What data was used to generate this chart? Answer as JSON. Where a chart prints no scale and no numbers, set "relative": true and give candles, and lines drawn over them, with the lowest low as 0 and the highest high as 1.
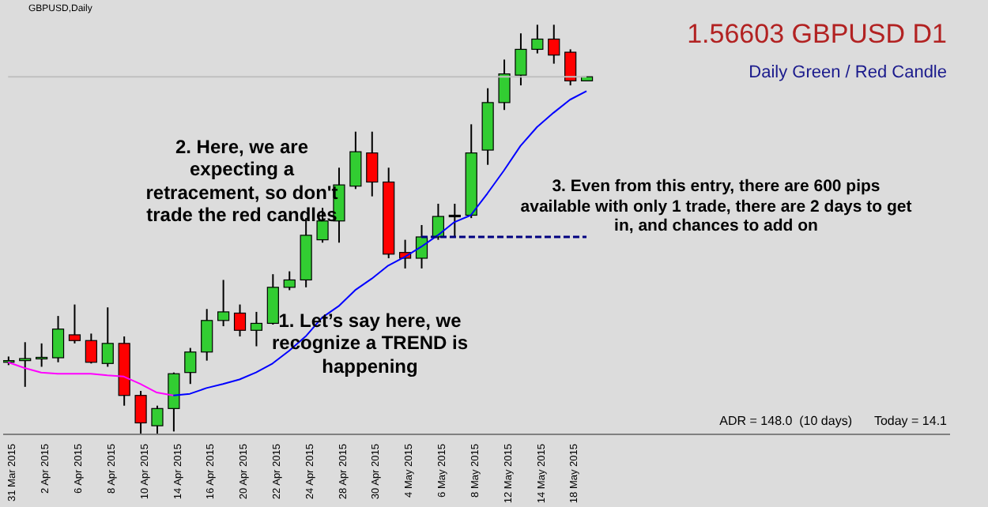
{
  "chart_data": {
    "type": "candlestick",
    "title": "1.56603 GBPUSD D1",
    "subtitle": "Daily Green / Red Candle",
    "relative": true,
    "categories": [
      "31 Mar 2015",
      null,
      "2 Apr 2015",
      null,
      "6 Apr 2015",
      null,
      "8 Apr 2015",
      null,
      "10 Apr 2015",
      null,
      "14 Apr 2015",
      null,
      "16 Apr 2015",
      null,
      "20 Apr 2015",
      null,
      "22 Apr 2015",
      null,
      "24 Apr 2015",
      null,
      "28 Apr 2015",
      null,
      "30 Apr 2015",
      null,
      "4 May 2015",
      null,
      "6 May 2015",
      null,
      "8 May 2015",
      null,
      "12 May 2015",
      null,
      "14 May 2015",
      null,
      "18 May 2015",
      null
    ],
    "ohlc": [
      [
        0.176,
        0.19,
        0.169,
        0.18
      ],
      [
        0.18,
        0.225,
        0.116,
        0.185
      ],
      [
        0.187,
        0.222,
        0.165,
        0.188
      ],
      [
        0.187,
        0.289,
        0.176,
        0.257
      ],
      [
        0.243,
        0.317,
        0.222,
        0.229
      ],
      [
        0.229,
        0.246,
        0.173,
        0.176
      ],
      [
        0.173,
        0.31,
        0.165,
        0.222
      ],
      [
        0.222,
        0.239,
        0.07,
        0.095
      ],
      [
        0.095,
        0.106,
        0,
        0.028
      ],
      [
        0.021,
        0.07,
        0,
        0.063
      ],
      [
        0.063,
        0.151,
        0.007,
        0.148
      ],
      [
        0.151,
        0.211,
        0.123,
        0.201
      ],
      [
        0.201,
        0.306,
        0.18,
        0.278
      ],
      [
        0.278,
        0.377,
        0.264,
        0.299
      ],
      [
        0.296,
        0.317,
        0.239,
        0.254
      ],
      [
        0.254,
        0.299,
        0.215,
        0.271
      ],
      [
        0.271,
        0.391,
        0.268,
        0.359
      ],
      [
        0.359,
        0.398,
        0.352,
        0.377
      ],
      [
        0.377,
        0.528,
        0.359,
        0.486
      ],
      [
        0.475,
        0.553,
        0.468,
        0.521
      ],
      [
        0.521,
        0.651,
        0.468,
        0.609
      ],
      [
        0.606,
        0.739,
        0.599,
        0.69
      ],
      [
        0.687,
        0.739,
        0.581,
        0.616
      ],
      [
        0.616,
        0.651,
        0.43,
        0.44
      ],
      [
        0.444,
        0.475,
        0.405,
        0.43
      ],
      [
        0.43,
        0.511,
        0.405,
        0.482
      ],
      [
        0.482,
        0.563,
        0.475,
        0.532
      ],
      [
        0.532,
        0.563,
        0.482,
        0.535
      ],
      [
        0.535,
        0.757,
        0.528,
        0.687
      ],
      [
        0.694,
        0.845,
        0.658,
        0.81
      ],
      [
        0.81,
        0.915,
        0.792,
        0.88
      ],
      [
        0.877,
        0.979,
        0.852,
        0.94
      ],
      [
        0.94,
        1,
        0.93,
        0.965
      ],
      [
        0.965,
        1,
        0.905,
        0.926
      ],
      [
        0.933,
        0.94,
        0.852,
        0.863
      ],
      [
        0.863,
        0.873,
        0.863,
        0.873
      ]
    ],
    "colors": [
      "#32cd32",
      "#32cd32",
      "#32cd32",
      "#32cd32",
      "#ff0000",
      "#ff0000",
      "#32cd32",
      "#ff0000",
      "#ff0000",
      "#32cd32",
      "#32cd32",
      "#32cd32",
      "#32cd32",
      "#32cd32",
      "#ff0000",
      "#32cd32",
      "#32cd32",
      "#32cd32",
      "#32cd32",
      "#32cd32",
      "#32cd32",
      "#32cd32",
      "#ff0000",
      "#ff0000",
      "#ff0000",
      "#32cd32",
      "#32cd32",
      "#000000",
      "#32cd32",
      "#32cd32",
      "#32cd32",
      "#32cd32",
      "#32cd32",
      "#ff0000",
      "#ff0000",
      "#32cd32"
    ],
    "series": [
      {
        "type": "line",
        "color": "#ff00ff",
        "values": [
          0.176,
          0.162,
          0.151,
          0.148,
          0.148,
          0.148,
          0.144,
          0.141,
          0.123,
          0.102,
          0.095,
          null,
          null,
          null,
          null,
          null,
          null,
          null,
          null,
          null,
          null,
          null,
          null,
          null,
          null,
          null,
          null,
          null,
          null,
          null,
          null,
          null,
          null,
          null,
          null,
          null
        ]
      },
      {
        "type": "line",
        "color": "#0000ff",
        "values": [
          null,
          null,
          null,
          null,
          null,
          null,
          null,
          null,
          null,
          null,
          0.095,
          0.099,
          0.113,
          0.123,
          0.134,
          0.151,
          0.173,
          0.204,
          0.239,
          0.285,
          0.313,
          0.352,
          0.38,
          0.412,
          0.433,
          0.458,
          0.486,
          0.518,
          0.535,
          0.588,
          0.644,
          0.704,
          0.75,
          0.785,
          0.817,
          0.838
        ]
      },
      {
        "type": "line",
        "color": "#c0c0c0",
        "values": [
          0.873,
          0.873,
          0.873,
          0.873,
          0.873,
          0.873,
          0.873,
          0.873,
          0.873,
          0.873,
          0.873,
          0.873,
          0.873,
          0.873,
          0.873,
          0.873,
          0.873,
          0.873,
          0.873,
          0.873,
          0.873,
          0.873,
          0.873,
          0.873,
          0.873,
          0.873,
          0.873,
          0.873,
          0.873,
          0.873,
          0.873,
          0.873,
          0.873,
          0.873,
          0.873,
          0.873
        ]
      },
      {
        "type": "line",
        "color": "#000080",
        "line_style": "dashed",
        "values": [
          null,
          null,
          null,
          null,
          null,
          null,
          null,
          null,
          null,
          null,
          null,
          null,
          null,
          null,
          null,
          null,
          null,
          null,
          null,
          null,
          null,
          null,
          null,
          null,
          null,
          0.482,
          0.482,
          0.482,
          0.482,
          0.482,
          0.482,
          0.482,
          0.482,
          0.482,
          0.482,
          0.482
        ]
      }
    ],
    "marker": "none",
    "line_style": "solid",
    "tick_labels": "x",
    "annotations": [
      "GBPUSD,Daily",
      "2. Here, we are expecting a retracement, so don't trade the red candles",
      "1. Let’s say here, we recognize a TREND is happening",
      "3. Even from this entry, there are 600 pips available with only 1 trade, there are 2 days to get in, and chances to add on",
      "ADR = 148.0  (10 days)",
      "Today = 14.1"
    ]
  }
}
